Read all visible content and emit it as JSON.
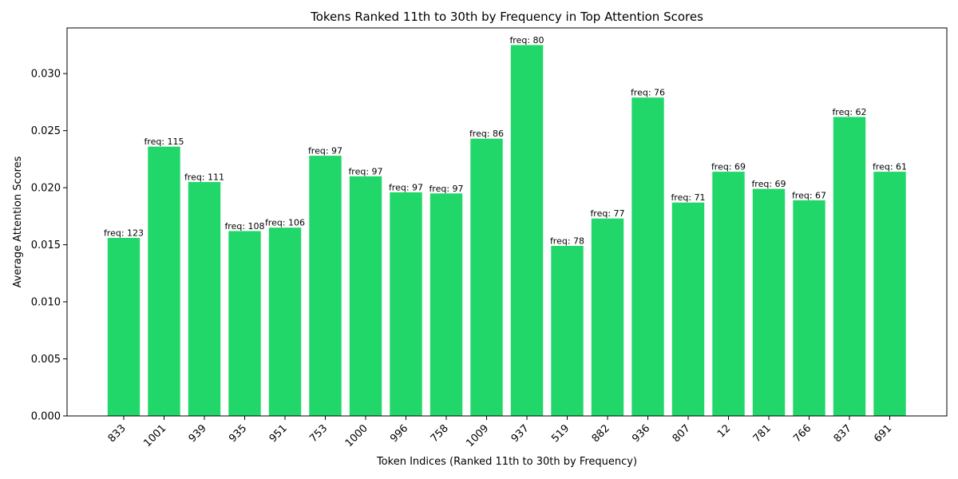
{
  "chart_data": {
    "type": "bar",
    "title": "Tokens Ranked 11th to 30th by Frequency in Top Attention Scores",
    "xlabel": "Token Indices (Ranked 11th to 30th by Frequency)",
    "ylabel": "Average Attention Scores",
    "ylim": [
      0,
      0.034
    ],
    "yticks": [
      "0.000",
      "0.005",
      "0.010",
      "0.015",
      "0.020",
      "0.025",
      "0.030"
    ],
    "ytick_values": [
      0,
      0.005,
      0.01,
      0.015,
      0.02,
      0.025,
      0.03
    ],
    "categories": [
      "833",
      "1001",
      "939",
      "935",
      "951",
      "753",
      "1000",
      "996",
      "758",
      "1009",
      "937",
      "519",
      "882",
      "936",
      "807",
      "12",
      "781",
      "766",
      "837",
      "691"
    ],
    "values": [
      0.0156,
      0.0236,
      0.0205,
      0.0162,
      0.0165,
      0.0228,
      0.021,
      0.0196,
      0.0195,
      0.0243,
      0.0325,
      0.0149,
      0.0173,
      0.0279,
      0.0187,
      0.0214,
      0.0199,
      0.0189,
      0.0262,
      0.0214
    ],
    "bar_labels": [
      "freq: 123",
      "freq: 115",
      "freq: 111",
      "freq: 108",
      "freq: 106",
      "freq: 97",
      "freq: 97",
      "freq: 97",
      "freq: 97",
      "freq: 86",
      "freq: 80",
      "freq: 78",
      "freq: 77",
      "freq: 76",
      "freq: 71",
      "freq: 69",
      "freq: 69",
      "freq: 67",
      "freq: 62",
      "freq: 61"
    ],
    "bar_color": "#21d769",
    "grid": false,
    "legend": "none"
  }
}
